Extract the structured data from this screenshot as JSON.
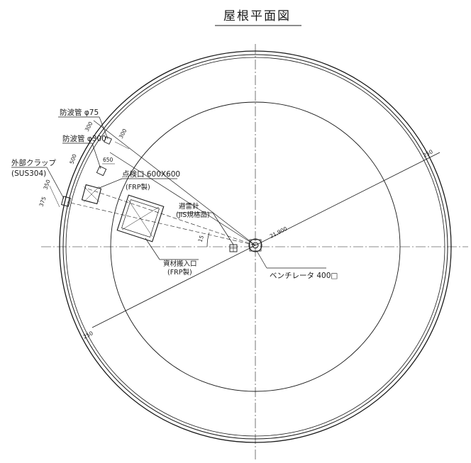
{
  "title": "屋根平面図",
  "labels": {
    "lightning_rod_pipe": "防波管 φ75",
    "wave_pipe_300": "防波管 φ300",
    "outer_trap": "外部クラップ",
    "outer_trap_material": "(SUS304)",
    "inspection_port": "点検口 600X600",
    "inspection_port_material": "(FRP製)",
    "lightning_conductor": "避雷針",
    "lightning_conductor_note": "(JIS規格品)",
    "material_hatch": "資材搬入口",
    "material_hatch_material": "(FRP製)",
    "ventilator": "ベンチレータ 400□"
  },
  "dimensions": {
    "d300_top": "300",
    "d300_b": "300",
    "d650": "650",
    "d500": "500",
    "d350": "350",
    "d375": "375",
    "d15": "15",
    "radius": "21,900",
    "d250_right": "250",
    "d250_left": "250"
  }
}
